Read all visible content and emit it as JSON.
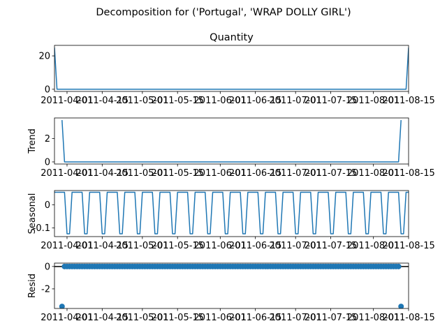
{
  "suptitle": "Decomposition for ('Portugal', 'WRAP DOLLY GIRL')",
  "series_color": "#1f77b4",
  "chart_data": [
    {
      "type": "line",
      "title": "Quantity",
      "ylabel": "",
      "xlim": [
        "2011-03-27",
        "2011-08-15"
      ],
      "ylim": [
        -1.3,
        26.3
      ],
      "yticks": [
        0,
        20
      ],
      "xticks": [
        "2011-04-01",
        "2011-04-15",
        "2011-05-01",
        "2011-05-15",
        "2011-06-01",
        "2011-06-15",
        "2011-07-01",
        "2011-07-15",
        "2011-08-01",
        "2011-08-15"
      ],
      "x": [
        "2011-03-27",
        "2011-03-28",
        "2011-08-14",
        "2011-08-15"
      ],
      "values": [
        25,
        0,
        0,
        25
      ]
    },
    {
      "type": "line",
      "title": "",
      "ylabel": "Trend",
      "xlim": [
        "2011-03-27",
        "2011-08-15"
      ],
      "ylim": [
        -0.18,
        3.75
      ],
      "yticks": [
        0,
        2
      ],
      "xticks": [
        "2011-04-01",
        "2011-04-15",
        "2011-05-01",
        "2011-05-15",
        "2011-06-01",
        "2011-06-15",
        "2011-07-01",
        "2011-07-15",
        "2011-08-01",
        "2011-08-15"
      ],
      "x": [
        "2011-03-30",
        "2011-03-31",
        "2011-08-11",
        "2011-08-12"
      ],
      "values": [
        3.57,
        0,
        0,
        3.57
      ]
    },
    {
      "type": "line",
      "title": "",
      "ylabel": "Seasonal",
      "xlim": [
        "2011-03-27",
        "2011-08-15"
      ],
      "ylim": [
        -0.137,
        0.061
      ],
      "yticks": [
        0.0,
        -0.1
      ],
      "xticks": [
        "2011-04-01",
        "2011-04-15",
        "2011-05-01",
        "2011-05-15",
        "2011-06-01",
        "2011-06-15",
        "2011-07-01",
        "2011-07-15",
        "2011-08-01",
        "2011-08-15"
      ],
      "pattern_start": "2011-03-27",
      "weekly_pattern": [
        0.0536,
        0.0536,
        0.0536,
        0.0536,
        0.0536,
        -0.125,
        -0.125
      ]
    },
    {
      "type": "scatter",
      "title": "",
      "ylabel": "Resid",
      "xlim": [
        "2011-03-27",
        "2011-08-15"
      ],
      "ylim": [
        -3.75,
        0.3
      ],
      "yticks": [
        0,
        -2
      ],
      "xticks": [
        "2011-04-01",
        "2011-04-15",
        "2011-05-01",
        "2011-05-15",
        "2011-06-01",
        "2011-06-15",
        "2011-07-01",
        "2011-07-15",
        "2011-08-01",
        "2011-08-15"
      ],
      "x_start": "2011-03-30",
      "x_end": "2011-08-12",
      "values_default": 0.0,
      "outliers": [
        {
          "x": "2011-03-30",
          "y": -3.57
        },
        {
          "x": "2011-08-12",
          "y": -3.57
        }
      ]
    }
  ]
}
